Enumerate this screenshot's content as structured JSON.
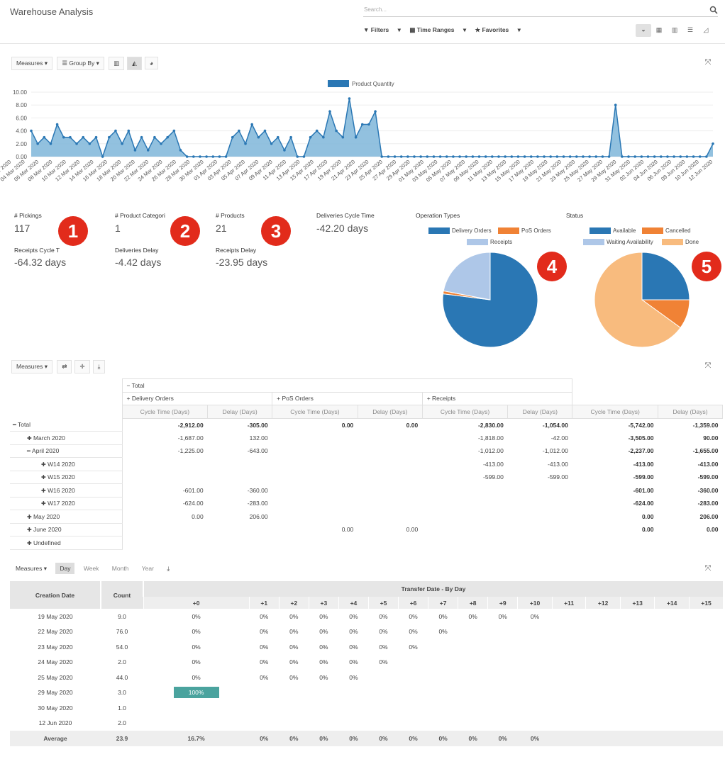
{
  "page": {
    "title": "Warehouse Analysis"
  },
  "search": {
    "placeholder": "Search..."
  },
  "filters": {
    "filters": "Filters",
    "time_ranges": "Time Ranges",
    "favorites": "Favorites"
  },
  "graph_toolbar": {
    "measures": "Measures",
    "group_by": "Group By"
  },
  "chart_data": [
    {
      "type": "area",
      "series": [
        {
          "name": "Product Quantity",
          "values": [
            4,
            2,
            3,
            2,
            5,
            3,
            3,
            2,
            3,
            2,
            3,
            0,
            3,
            4,
            2,
            4,
            1,
            3,
            1,
            3,
            2,
            3,
            4,
            1,
            0,
            0,
            0,
            0,
            0,
            0,
            0,
            3,
            4,
            2,
            5,
            3,
            4,
            2,
            3,
            1,
            3,
            0,
            0,
            3,
            4,
            3,
            7,
            4,
            3,
            9,
            3,
            5,
            5,
            7,
            0,
            0,
            0,
            0,
            0,
            0,
            0,
            0,
            0,
            0,
            0,
            0,
            0,
            0,
            0,
            0,
            0,
            0,
            0,
            0,
            0,
            0,
            0,
            0,
            0,
            0,
            0,
            0,
            0,
            0,
            0,
            0,
            0,
            0,
            0,
            0,
            8,
            0,
            0,
            0,
            0,
            0,
            0,
            0,
            0,
            0,
            0,
            0,
            0,
            0,
            0,
            2
          ]
        }
      ],
      "x_ticks": [
        "02 Mar 2020",
        "04 Mar 2020",
        "06 Mar 2020",
        "08 Mar 2020",
        "10 Mar 2020",
        "12 Mar 2020",
        "14 Mar 2020",
        "16 Mar 2020",
        "18 Mar 2020",
        "20 Mar 2020",
        "22 Mar 2020",
        "24 Mar 2020",
        "26 Mar 2020",
        "28 Mar 2020",
        "30 Mar 2020",
        "01 Apr 2020",
        "03 Apr 2020",
        "05 Apr 2020",
        "07 Apr 2020",
        "09 Apr 2020",
        "11 Apr 2020",
        "13 Apr 2020",
        "15 Apr 2020",
        "17 Apr 2020",
        "19 Apr 2020",
        "21 Apr 2020",
        "23 Apr 2020",
        "25 Apr 2020",
        "27 Apr 2020",
        "29 Apr 2020",
        "01 May 2020",
        "03 May 2020",
        "05 May 2020",
        "07 May 2020",
        "09 May 2020",
        "11 May 2020",
        "13 May 2020",
        "15 May 2020",
        "17 May 2020",
        "19 May 2020",
        "21 May 2020",
        "23 May 2020",
        "25 May 2020",
        "27 May 2020",
        "29 May 2020",
        "31 May 2020",
        "02 Jun 2020",
        "04 Jun 2020",
        "06 Jun 2020",
        "08 Jun 2020",
        "10 Jun 2020",
        "12 Jun 2020"
      ],
      "y_ticks": [
        "0.00",
        "2.00",
        "4.00",
        "6.00",
        "8.00",
        "10.00"
      ],
      "ylim": [
        0,
        10
      ],
      "legend": "top-center",
      "color": "#2a77b4"
    },
    {
      "type": "pie",
      "title": "Operation Types",
      "labels": [
        "Delivery Orders",
        "PoS Orders",
        "Receipts"
      ],
      "values": [
        77,
        1,
        22
      ],
      "colors": [
        "#2a77b4",
        "#f08235",
        "#aec7e8"
      ]
    },
    {
      "type": "pie",
      "title": "Status",
      "labels": [
        "Available",
        "Cancelled",
        "Waiting Availability",
        "Done"
      ],
      "values": [
        25,
        10,
        0,
        65
      ],
      "colors": [
        "#2a77b4",
        "#f08235",
        "#aec7e8",
        "#f8bb7e"
      ]
    }
  ],
  "kpis": [
    {
      "label": "# Pickings",
      "value": "117"
    },
    {
      "label": "# Product Categori",
      "value": "1"
    },
    {
      "label": "# Products",
      "value": "21"
    },
    {
      "label": "Deliveries Cycle Time",
      "value": "-42.20 days"
    },
    {
      "label": "Receipts Cycle T",
      "value": "-64.32 days"
    },
    {
      "label": "Deliveries Delay",
      "value": "-4.42 days"
    },
    {
      "label": "Receipts Delay",
      "value": "-23.95 days"
    }
  ],
  "badges": [
    "1",
    "2",
    "3",
    "4",
    "5"
  ],
  "pivot": {
    "measures": "Measures",
    "total_label": "Total",
    "groups": [
      "Delivery Orders",
      "PoS Orders",
      "Receipts"
    ],
    "measure_cols": [
      "Cycle Time (Days)",
      "Delay (Days)"
    ],
    "rows": [
      {
        "label": "Total",
        "sign": "−",
        "indent": 0,
        "vals": [
          "-2,912.00",
          "-305.00",
          "0.00",
          "0.00",
          "-2,830.00",
          "-1,054.00",
          "-5,742.00",
          "-1,359.00"
        ]
      },
      {
        "label": "March 2020",
        "sign": "+",
        "indent": 1,
        "vals": [
          "-1,687.00",
          "132.00",
          "",
          "",
          "-1,818.00",
          "-42.00",
          "-3,505.00",
          "90.00"
        ]
      },
      {
        "label": "April 2020",
        "sign": "−",
        "indent": 1,
        "vals": [
          "-1,225.00",
          "-643.00",
          "",
          "",
          "-1,012.00",
          "-1,012.00",
          "-2,237.00",
          "-1,655.00"
        ]
      },
      {
        "label": "W14 2020",
        "sign": "+",
        "indent": 2,
        "vals": [
          "",
          "",
          "",
          "",
          "-413.00",
          "-413.00",
          "-413.00",
          "-413.00"
        ]
      },
      {
        "label": "W15 2020",
        "sign": "+",
        "indent": 2,
        "vals": [
          "",
          "",
          "",
          "",
          "-599.00",
          "-599.00",
          "-599.00",
          "-599.00"
        ]
      },
      {
        "label": "W16 2020",
        "sign": "+",
        "indent": 2,
        "vals": [
          "-601.00",
          "-360.00",
          "",
          "",
          "",
          "",
          "-601.00",
          "-360.00"
        ]
      },
      {
        "label": "W17 2020",
        "sign": "+",
        "indent": 2,
        "vals": [
          "-624.00",
          "-283.00",
          "",
          "",
          "",
          "",
          "-624.00",
          "-283.00"
        ]
      },
      {
        "label": "May 2020",
        "sign": "+",
        "indent": 1,
        "vals": [
          "0.00",
          "206.00",
          "",
          "",
          "",
          "",
          "0.00",
          "206.00"
        ]
      },
      {
        "label": "June 2020",
        "sign": "+",
        "indent": 1,
        "vals": [
          "",
          "",
          "0.00",
          "0.00",
          "",
          "",
          "0.00",
          "0.00"
        ]
      },
      {
        "label": "Undefined",
        "sign": "+",
        "indent": 1,
        "vals": [
          "",
          "",
          "",
          "",
          "",
          "",
          "",
          ""
        ]
      }
    ]
  },
  "cohort": {
    "measures": "Measures",
    "intervals": [
      "Day",
      "Week",
      "Month",
      "Year"
    ],
    "col_creation": "Creation Date",
    "col_count": "Count",
    "group_title": "Transfer Date - By Day",
    "offsets": [
      "+0",
      "+1",
      "+2",
      "+3",
      "+4",
      "+5",
      "+6",
      "+7",
      "+8",
      "+9",
      "+10",
      "+11",
      "+12",
      "+13",
      "+14",
      "+15"
    ],
    "rows": [
      {
        "date": "19 May 2020",
        "count": "9.0",
        "vals": [
          "0%",
          "0%",
          "0%",
          "0%",
          "0%",
          "0%",
          "0%",
          "0%",
          "0%",
          "0%",
          "0%"
        ]
      },
      {
        "date": "22 May 2020",
        "count": "76.0",
        "vals": [
          "0%",
          "0%",
          "0%",
          "0%",
          "0%",
          "0%",
          "0%",
          "0%"
        ]
      },
      {
        "date": "23 May 2020",
        "count": "54.0",
        "vals": [
          "0%",
          "0%",
          "0%",
          "0%",
          "0%",
          "0%",
          "0%"
        ]
      },
      {
        "date": "24 May 2020",
        "count": "2.0",
        "vals": [
          "0%",
          "0%",
          "0%",
          "0%",
          "0%",
          "0%"
        ]
      },
      {
        "date": "25 May 2020",
        "count": "44.0",
        "vals": [
          "0%",
          "0%",
          "0%",
          "0%",
          "0%"
        ]
      },
      {
        "date": "29 May 2020",
        "count": "3.0",
        "vals": [
          "100%"
        ]
      },
      {
        "date": "30 May 2020",
        "count": "1.0",
        "vals": []
      },
      {
        "date": "12 Jun 2020",
        "count": "2.0",
        "vals": []
      }
    ],
    "average": {
      "label": "Average",
      "count": "23.9",
      "vals": [
        "16.7%",
        "0%",
        "0%",
        "0%",
        "0%",
        "0%",
        "0%",
        "0%",
        "0%",
        "0%",
        "0%"
      ]
    }
  }
}
